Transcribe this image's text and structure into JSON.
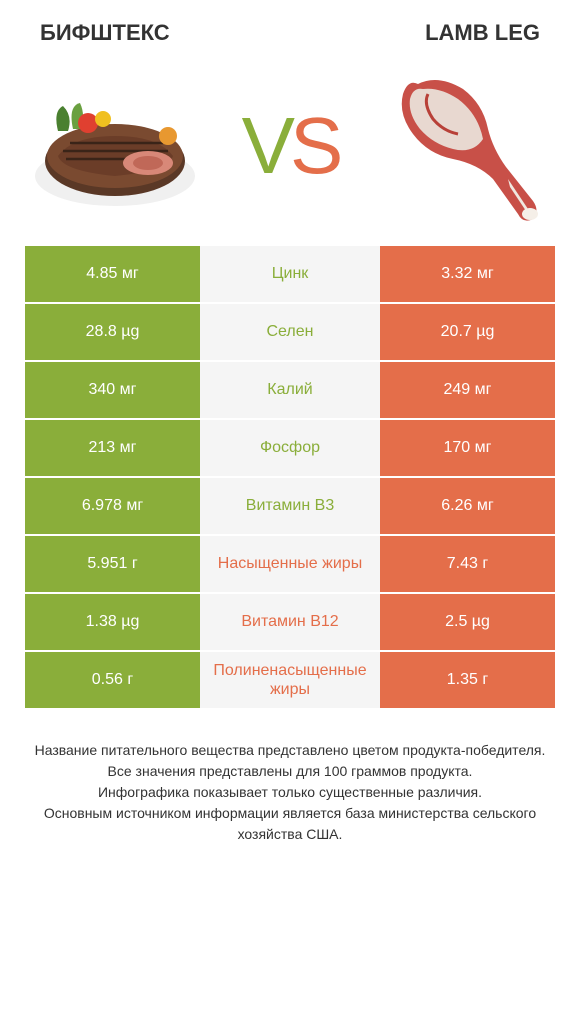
{
  "colors": {
    "green": "#8aae3a",
    "orange": "#e46e4a",
    "light_bg": "#f5f5f5",
    "text": "#333333"
  },
  "header": {
    "left_title": "БИФШТЕКС",
    "right_title": "LAMB LEG"
  },
  "vs": {
    "v_char": "V",
    "s_char": "S"
  },
  "rows": [
    {
      "left": "4.85 мг",
      "center": "Цинк",
      "right": "3.32 мг",
      "winner": "left"
    },
    {
      "left": "28.8 µg",
      "center": "Селен",
      "right": "20.7 µg",
      "winner": "left"
    },
    {
      "left": "340 мг",
      "center": "Калий",
      "right": "249 мг",
      "winner": "left"
    },
    {
      "left": "213 мг",
      "center": "Фосфор",
      "right": "170 мг",
      "winner": "left"
    },
    {
      "left": "6.978 мг",
      "center": "Витамин B3",
      "right": "6.26 мг",
      "winner": "left"
    },
    {
      "left": "5.951 г",
      "center": "Насыщенные жиры",
      "right": "7.43 г",
      "winner": "right"
    },
    {
      "left": "1.38 µg",
      "center": "Витамин B12",
      "right": "2.5 µg",
      "winner": "right"
    },
    {
      "left": "0.56 г",
      "center": "Полиненасыщенные жиры",
      "right": "1.35 г",
      "winner": "right"
    }
  ],
  "footer": {
    "line1": "Название питательного вещества представлено цветом продукта-победителя.",
    "line2": "Все значения представлены для 100 граммов продукта.",
    "line3": "Инфографика показывает только существенные различия.",
    "line4": "Основным источником информации является база министерства сельского хозяйства США."
  }
}
